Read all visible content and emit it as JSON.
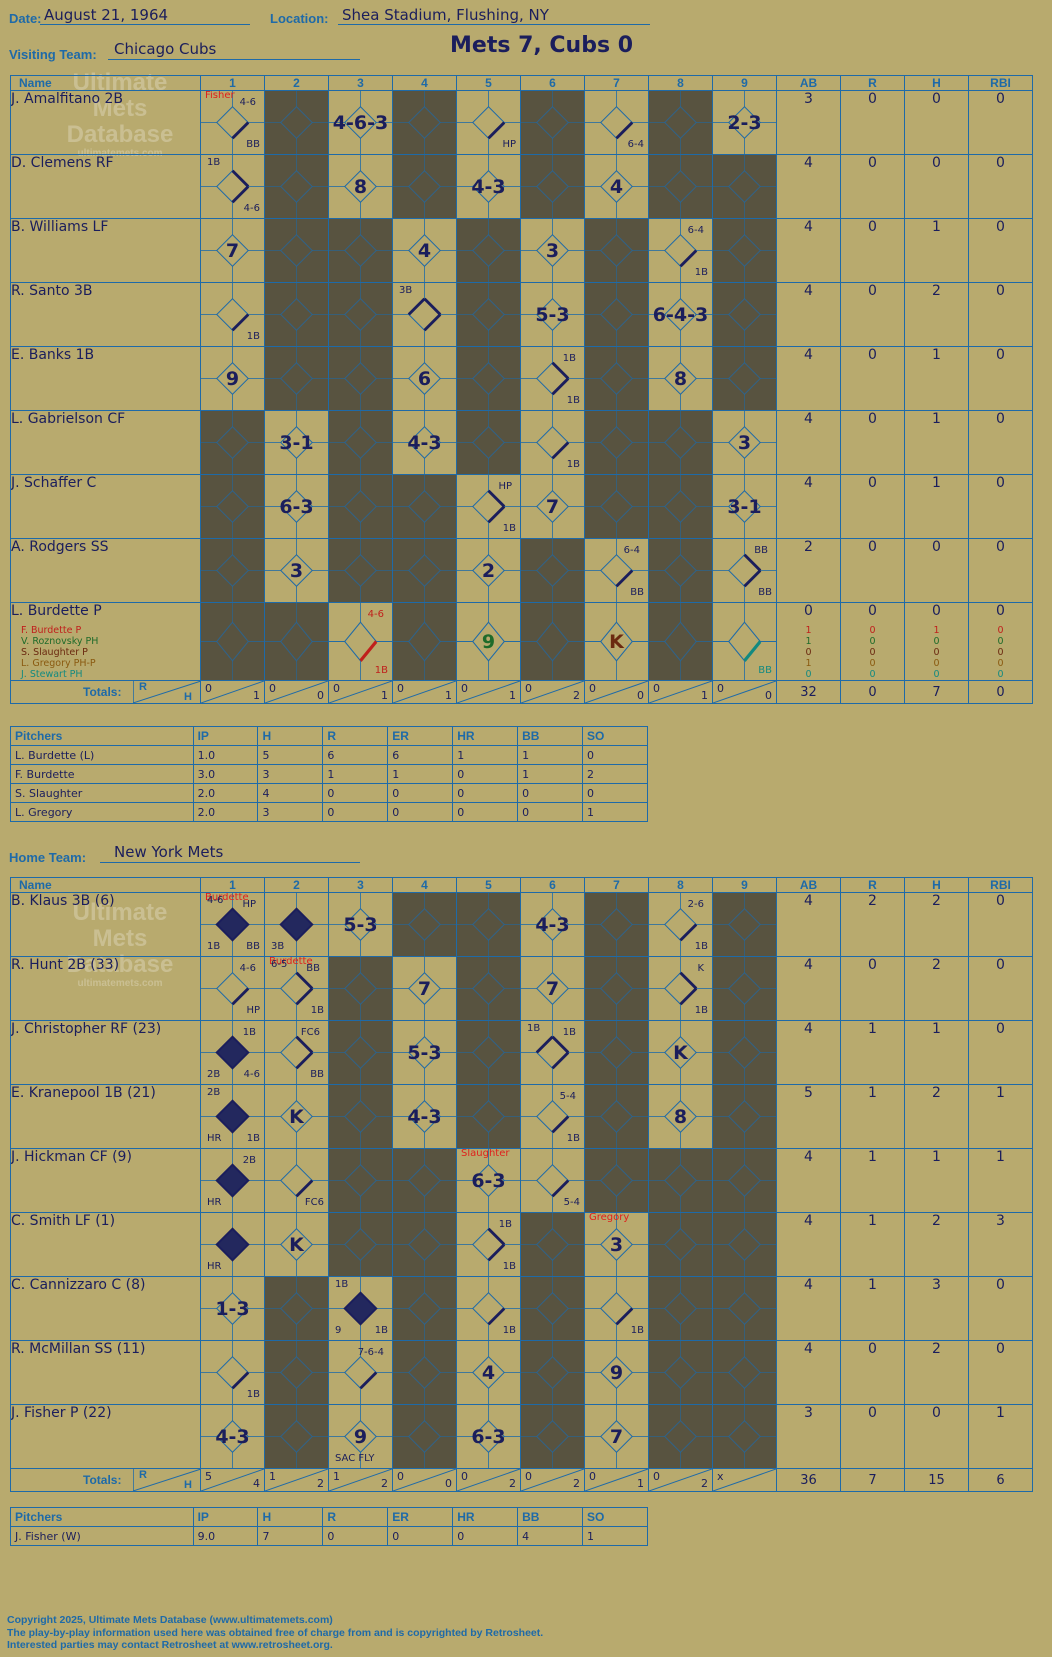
{
  "header": {
    "date_label": "Date:",
    "date": "August 21, 1964",
    "location_label": "Location:",
    "location": "Shea Stadium, Flushing, NY",
    "visiting_label": "Visiting Team:",
    "visiting_team": "Chicago Cubs",
    "home_label": "Home Team:",
    "home_team": "New York Mets",
    "result": "Mets 7, Cubs 0"
  },
  "columns": {
    "name": "Name",
    "innings": [
      "1",
      "2",
      "3",
      "4",
      "5",
      "6",
      "7",
      "8",
      "9"
    ],
    "stats": [
      "AB",
      "R",
      "H",
      "RBI"
    ],
    "totals_label": "Totals:",
    "r": "R",
    "h": "H"
  },
  "watermark": {
    "line1": "Ultimate",
    "line2": "Mets",
    "line3": "Database",
    "site": "ultimatemets.com"
  },
  "visitors": {
    "players": [
      {
        "name": "J. Amalfitano 2B",
        "ab": "3",
        "r": "0",
        "h": "0",
        "rbi": "0"
      },
      {
        "name": "D. Clemens RF",
        "ab": "4",
        "r": "0",
        "h": "0",
        "rbi": "0"
      },
      {
        "name": "B. Williams LF",
        "ab": "4",
        "r": "0",
        "h": "1",
        "rbi": "0"
      },
      {
        "name": "R. Santo 3B",
        "ab": "4",
        "r": "0",
        "h": "2",
        "rbi": "0"
      },
      {
        "name": "E. Banks 1B",
        "ab": "4",
        "r": "0",
        "h": "1",
        "rbi": "0"
      },
      {
        "name": "L. Gabrielson CF",
        "ab": "4",
        "r": "0",
        "h": "1",
        "rbi": "0"
      },
      {
        "name": "J. Schaffer C",
        "ab": "4",
        "r": "0",
        "h": "1",
        "rbi": "0"
      },
      {
        "name": "A. Rodgers SS",
        "ab": "2",
        "r": "0",
        "h": "0",
        "rbi": "0"
      },
      {
        "name": "L. Burdette P",
        "ab": "0",
        "r": "0",
        "h": "0",
        "rbi": "0",
        "subs": [
          {
            "name": "F. Burdette P",
            "color": "#c0201c",
            "ab": "1",
            "r": "0",
            "h": "1",
            "rbi": "0"
          },
          {
            "name": "V. Roznovsky PH",
            "color": "#1f6b2a",
            "ab": "1",
            "r": "0",
            "h": "0",
            "rbi": "0"
          },
          {
            "name": "S. Slaughter P",
            "color": "#6b2a10",
            "ab": "0",
            "r": "0",
            "h": "0",
            "rbi": "0"
          },
          {
            "name": "L. Gregory PH-P",
            "color": "#8a5a10",
            "ab": "1",
            "r": "0",
            "h": "0",
            "rbi": "0"
          },
          {
            "name": "J. Stewart PH",
            "color": "#138a80",
            "ab": "0",
            "r": "0",
            "h": "0",
            "rbi": "0"
          }
        ]
      }
    ],
    "cells": [
      [
        {
          "tl": "",
          "tr": "4-6",
          "bl": "",
          "br": "BB",
          "pitcher": "Fisher",
          "seg": 1
        },
        {
          "dark": true
        },
        {
          "big": "4-6-3"
        },
        {
          "dark": true
        },
        {
          "br": "HP",
          "seg": 1
        },
        {
          "dark": true
        },
        {
          "br": "6-4",
          "seg": 1
        },
        {
          "dark": true
        },
        {
          "big": "2-3"
        }
      ],
      [
        {
          "tl": "1B",
          "br": "4-6",
          "seg": 2
        },
        {
          "dark": true
        },
        {
          "big": "8"
        },
        {
          "dark": true
        },
        {
          "big": "4-3"
        },
        {
          "dark": true
        },
        {
          "big": "4"
        },
        {
          "dark": true
        },
        {
          "dark": true
        }
      ],
      [
        {
          "big": "7"
        },
        {
          "dark": true
        },
        {
          "dark": true
        },
        {
          "big": "4"
        },
        {
          "dark": true
        },
        {
          "big": "3"
        },
        {
          "dark": true
        },
        {
          "tr": "6-4",
          "br": "1B",
          "seg": 1
        },
        {
          "dark": true
        }
      ],
      [
        {
          "br": "1B",
          "seg": 1
        },
        {
          "dark": true
        },
        {
          "dark": true
        },
        {
          "tl": "3B",
          "seg": 3
        },
        {
          "dark": true
        },
        {
          "big": "5-3"
        },
        {
          "dark": true
        },
        {
          "big": "6-4-3"
        },
        {
          "dark": true
        }
      ],
      [
        {
          "big": "9"
        },
        {
          "dark": true
        },
        {
          "dark": true
        },
        {
          "big": "6"
        },
        {
          "dark": true
        },
        {
          "tr": "1B",
          "br": "1B",
          "seg": 2
        },
        {
          "dark": true
        },
        {
          "big": "8"
        },
        {
          "dark": true
        }
      ],
      [
        {
          "dark": true
        },
        {
          "big": "3-1"
        },
        {
          "dark": true
        },
        {
          "big": "4-3"
        },
        {
          "dark": true
        },
        {
          "br": "1B",
          "seg": 1
        },
        {
          "dark": true
        },
        {
          "dark": true
        },
        {
          "big": "3"
        }
      ],
      [
        {
          "dark": true
        },
        {
          "big": "6-3"
        },
        {
          "dark": true
        },
        {
          "dark": true
        },
        {
          "tr": "HP",
          "br": "1B",
          "seg": 2
        },
        {
          "big": "7"
        },
        {
          "dark": true
        },
        {
          "dark": true
        },
        {
          "big": "3-1"
        }
      ],
      [
        {
          "dark": true
        },
        {
          "big": "3"
        },
        {
          "dark": true
        },
        {
          "dark": true
        },
        {
          "big": "2"
        },
        {
          "dark": true
        },
        {
          "tr": "6-4",
          "br": "BB",
          "seg": 1
        },
        {
          "dark": true
        },
        {
          "tr": "BB",
          "br": "BB",
          "seg": 2
        }
      ],
      [
        {
          "dark": true
        },
        {
          "dark": true
        },
        {
          "tr": "4-6",
          "br": "1B",
          "seg": 1,
          "color": "#c0201c"
        },
        {
          "dark": true
        },
        {
          "big": "9",
          "color": "#1f6b2a"
        },
        {
          "dark": true
        },
        {
          "big": "K",
          "color": "#6b2a10",
          "rev": true
        },
        {
          "dark": true
        },
        {
          "br": "BB",
          "seg": 1,
          "color": "#138a80"
        }
      ]
    ],
    "totals": [
      {
        "r": "0",
        "h": "1"
      },
      {
        "r": "0",
        "h": "0"
      },
      {
        "r": "0",
        "h": "1"
      },
      {
        "r": "0",
        "h": "1"
      },
      {
        "r": "0",
        "h": "1"
      },
      {
        "r": "0",
        "h": "2"
      },
      {
        "r": "0",
        "h": "0"
      },
      {
        "r": "0",
        "h": "1"
      },
      {
        "r": "0",
        "h": "0"
      }
    ],
    "total_stats": {
      "ab": "32",
      "r": "0",
      "h": "7",
      "rbi": "0"
    }
  },
  "visitor_pitchers": {
    "headers": [
      "Pitchers",
      "IP",
      "H",
      "R",
      "ER",
      "HR",
      "BB",
      "SO"
    ],
    "rows": [
      [
        "L. Burdette (L)",
        "1.0",
        "5",
        "6",
        "6",
        "1",
        "1",
        "0"
      ],
      [
        "F. Burdette",
        "3.0",
        "3",
        "1",
        "1",
        "0",
        "1",
        "2"
      ],
      [
        "S. Slaughter",
        "2.0",
        "4",
        "0",
        "0",
        "0",
        "0",
        "0"
      ],
      [
        "L. Gregory",
        "2.0",
        "3",
        "0",
        "0",
        "0",
        "0",
        "1"
      ]
    ]
  },
  "home": {
    "players": [
      {
        "name": "B. Klaus 3B (6)",
        "ab": "4",
        "r": "2",
        "h": "2",
        "rbi": "0"
      },
      {
        "name": "R. Hunt 2B (33)",
        "ab": "4",
        "r": "0",
        "h": "2",
        "rbi": "0"
      },
      {
        "name": "J. Christopher RF (23)",
        "ab": "4",
        "r": "1",
        "h": "1",
        "rbi": "0"
      },
      {
        "name": "E. Kranepool 1B (21)",
        "ab": "5",
        "r": "1",
        "h": "2",
        "rbi": "1"
      },
      {
        "name": "J. Hickman CF (9)",
        "ab": "4",
        "r": "1",
        "h": "1",
        "rbi": "1"
      },
      {
        "name": "C. Smith LF (1)",
        "ab": "4",
        "r": "1",
        "h": "2",
        "rbi": "3"
      },
      {
        "name": "C. Cannizzaro C (8)",
        "ab": "4",
        "r": "1",
        "h": "3",
        "rbi": "0"
      },
      {
        "name": "R. McMillan SS (11)",
        "ab": "4",
        "r": "0",
        "h": "2",
        "rbi": "0"
      },
      {
        "name": "J. Fisher P (22)",
        "ab": "3",
        "r": "0",
        "h": "0",
        "rbi": "1"
      }
    ],
    "cells": [
      [
        {
          "tl": "4-6",
          "tr": "HP",
          "bl": "1B",
          "br": "BB",
          "fill": true,
          "pitcher": "Burdette"
        },
        {
          "bl": "3B",
          "fill": true
        },
        {
          "big": "5-3"
        },
        {
          "dark": true
        },
        {
          "dark": true
        },
        {
          "big": "4-3"
        },
        {
          "dark": true
        },
        {
          "tr": "2-6",
          "br": "1B",
          "seg": 1
        },
        {
          "dark": true
        }
      ],
      [
        {
          "tr": "4-6",
          "br": "HP",
          "seg": 1
        },
        {
          "tl": "6-5",
          "tr": "BB",
          "br": "1B",
          "seg": 2,
          "pitcher": "Burdette"
        },
        {
          "dark": true
        },
        {
          "big": "7"
        },
        {
          "dark": true
        },
        {
          "big": "7"
        },
        {
          "dark": true
        },
        {
          "tr": "K",
          "br": "1B",
          "seg": 2
        },
        {
          "dark": true
        }
      ],
      [
        {
          "tr": "1B",
          "bl": "2B",
          "br": "4-6",
          "fill": true
        },
        {
          "tr": "FC6",
          "br": "BB",
          "seg": 2
        },
        {
          "dark": true
        },
        {
          "big": "5-3"
        },
        {
          "dark": true
        },
        {
          "tl": "1B",
          "tr": "1B",
          "seg": 3
        },
        {
          "dark": true
        },
        {
          "big": "K"
        },
        {
          "dark": true
        }
      ],
      [
        {
          "tl": "2B",
          "bl": "HR",
          "br": "1B",
          "fill": true
        },
        {
          "big": "K"
        },
        {
          "dark": true
        },
        {
          "big": "4-3"
        },
        {
          "dark": true
        },
        {
          "tr": "5-4",
          "br": "1B",
          "seg": 1
        },
        {
          "dark": true
        },
        {
          "big": "8"
        },
        {
          "dark": true
        }
      ],
      [
        {
          "tr": "2B",
          "bl": "HR",
          "fill": true
        },
        {
          "br": "FC6",
          "seg": 1
        },
        {
          "dark": true
        },
        {
          "dark": true
        },
        {
          "big": "6-3",
          "pitcher": "Slaughter"
        },
        {
          "br": "5-4",
          "seg": 1
        },
        {
          "dark": true
        },
        {
          "dark": true
        },
        {
          "dark": true
        }
      ],
      [
        {
          "bl": "HR",
          "fill": true
        },
        {
          "big": "K"
        },
        {
          "dark": true
        },
        {
          "dark": true
        },
        {
          "tr": "1B",
          "br": "1B",
          "seg": 2
        },
        {
          "dark": true
        },
        {
          "big": "3",
          "pitcher": "Gregory"
        },
        {
          "dark": true
        },
        {
          "dark": true
        }
      ],
      [
        {
          "big": "1-3"
        },
        {
          "dark": true
        },
        {
          "tl": "1B",
          "bl": "9",
          "br": "1B",
          "fill": true
        },
        {
          "dark": true
        },
        {
          "br": "1B",
          "seg": 1
        },
        {
          "dark": true
        },
        {
          "br": "1B",
          "seg": 1
        },
        {
          "dark": true
        },
        {
          "dark": true
        }
      ],
      [
        {
          "br": "1B",
          "seg": 1
        },
        {
          "dark": true
        },
        {
          "tr": "7-6-4",
          "seg": 1
        },
        {
          "dark": true
        },
        {
          "big": "4"
        },
        {
          "dark": true
        },
        {
          "big": "9"
        },
        {
          "dark": true
        },
        {
          "dark": true
        }
      ],
      [
        {
          "big": "4-3"
        },
        {
          "dark": true
        },
        {
          "big": "9",
          "bl": "SAC FLY"
        },
        {
          "dark": true
        },
        {
          "big": "6-3"
        },
        {
          "dark": true
        },
        {
          "big": "7"
        },
        {
          "dark": true
        },
        {
          "dark": true
        }
      ]
    ],
    "totals": [
      {
        "r": "5",
        "h": "4"
      },
      {
        "r": "1",
        "h": "2"
      },
      {
        "r": "1",
        "h": "2"
      },
      {
        "r": "0",
        "h": "0"
      },
      {
        "r": "0",
        "h": "2"
      },
      {
        "r": "0",
        "h": "2"
      },
      {
        "r": "0",
        "h": "1"
      },
      {
        "r": "0",
        "h": "2"
      },
      {
        "r": "x",
        "h": ""
      }
    ],
    "total_stats": {
      "ab": "36",
      "r": "7",
      "h": "15",
      "rbi": "6"
    }
  },
  "home_pitchers": {
    "headers": [
      "Pitchers",
      "IP",
      "H",
      "R",
      "ER",
      "HR",
      "BB",
      "SO"
    ],
    "rows": [
      [
        "J. Fisher (W)",
        "9.0",
        "7",
        "0",
        "0",
        "0",
        "4",
        "1"
      ]
    ]
  },
  "footer": {
    "line1": "Copyright 2025, Ultimate Mets Database (www.ultimatemets.com)",
    "line2": "The play-by-play information used here was obtained free of charge from and is copyrighted by Retrosheet.",
    "line3": "Interested parties may contact Retrosheet at www.retrosheet.org."
  }
}
